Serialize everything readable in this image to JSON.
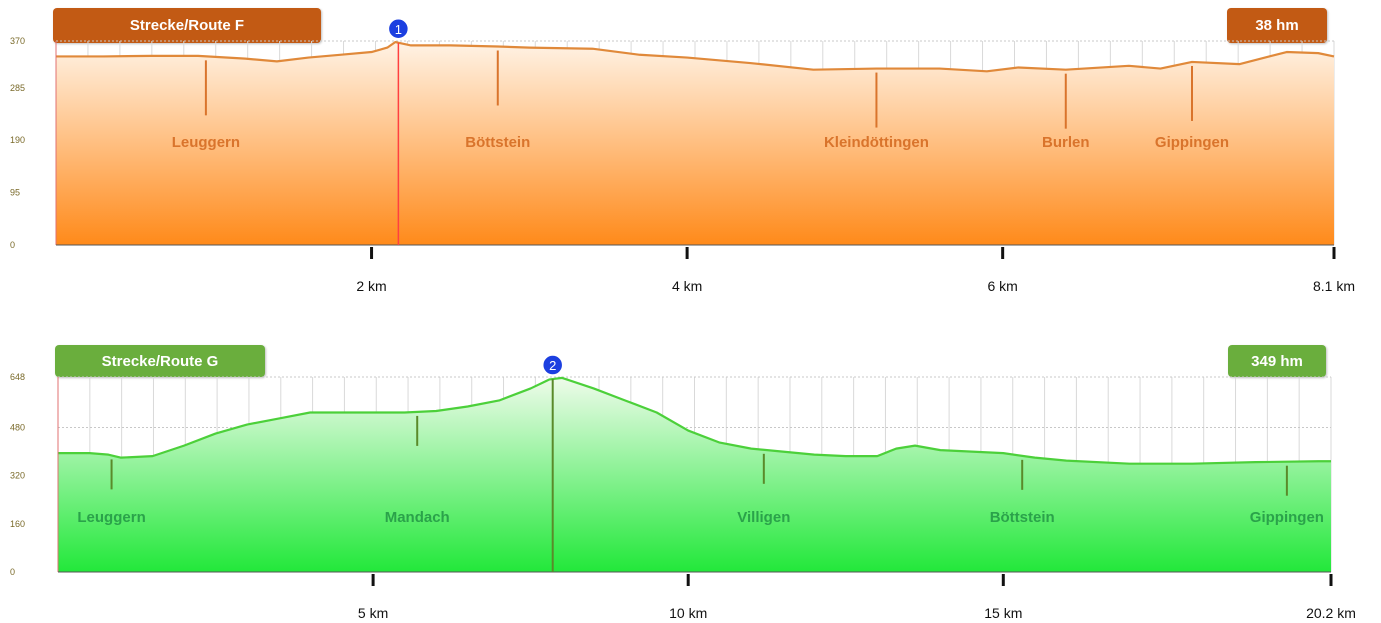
{
  "chart_data": [
    {
      "type": "area",
      "title": "Strecke/Route F",
      "total_label": "38 hm",
      "ylim": [
        0,
        370
      ],
      "y_ticks": [
        "0",
        "95",
        "190",
        "285",
        "370"
      ],
      "xlim": [
        0,
        8.1
      ],
      "x_ticks": [
        {
          "value": 2,
          "label": "2 km"
        },
        {
          "value": 4,
          "label": "4 km"
        },
        {
          "value": 6,
          "label": "6 km"
        },
        {
          "value": 8.1,
          "label": "8.1 km"
        }
      ],
      "grid": true,
      "series": [
        {
          "x": [
            0,
            0.3,
            0.6,
            0.9,
            1.2,
            1.4,
            1.6,
            1.8,
            2.0,
            2.1,
            2.15,
            2.25,
            2.5,
            2.8,
            3.0,
            3.4,
            3.7,
            4.0,
            4.4,
            4.8,
            5.2,
            5.6,
            5.9,
            6.1,
            6.4,
            6.8,
            7.0,
            7.2,
            7.5,
            7.8,
            8.0,
            8.1
          ],
          "y": [
            342,
            342,
            343,
            343,
            338,
            333,
            340,
            345,
            350,
            358,
            368,
            362,
            362,
            360,
            358,
            356,
            345,
            340,
            330,
            318,
            320,
            320,
            315,
            322,
            318,
            325,
            320,
            332,
            328,
            350,
            348,
            342
          ]
        }
      ],
      "marker": {
        "label": "1",
        "x": 2.17
      },
      "annotations": [
        {
          "label": "Leuggern",
          "x": 0.95
        },
        {
          "label": "Böttstein",
          "x": 2.8
        },
        {
          "label": "Kleindöttingen",
          "x": 5.2
        },
        {
          "label": "Burlen",
          "x": 6.4
        },
        {
          "label": "Gippingen",
          "x": 7.2
        }
      ],
      "colors": {
        "line": "#e0893a",
        "fill_top": "#fff3e6",
        "fill_bottom": "#ff8a1a",
        "text": "#d9742c",
        "grid": "#d9d9d9"
      }
    },
    {
      "type": "area",
      "title": "Strecke/Route G",
      "total_label": "349 hm",
      "ylim": [
        0,
        648
      ],
      "y_ticks": [
        "0",
        "160",
        "320",
        "480",
        "648"
      ],
      "xlim": [
        0,
        20.2
      ],
      "x_ticks": [
        {
          "value": 5,
          "label": "5 km"
        },
        {
          "value": 10,
          "label": "10 km"
        },
        {
          "value": 15,
          "label": "15 km"
        },
        {
          "value": 20.2,
          "label": "20.2 km"
        }
      ],
      "grid": true,
      "series": [
        {
          "x": [
            0,
            0.5,
            0.8,
            1.0,
            1.5,
            2.0,
            2.5,
            3.0,
            3.5,
            4.0,
            4.5,
            5.0,
            5.5,
            6.0,
            6.5,
            7.0,
            7.5,
            7.8,
            8.0,
            8.5,
            9.0,
            9.5,
            10.0,
            10.5,
            11.0,
            11.5,
            12.0,
            12.5,
            13.0,
            13.3,
            13.6,
            14.0,
            14.5,
            15.0,
            15.5,
            16.0,
            17.0,
            18.0,
            19.0,
            20.0,
            20.2
          ],
          "y": [
            395,
            395,
            390,
            380,
            385,
            420,
            460,
            490,
            510,
            530,
            530,
            530,
            530,
            535,
            550,
            570,
            610,
            640,
            645,
            610,
            570,
            530,
            470,
            430,
            410,
            400,
            390,
            385,
            385,
            410,
            420,
            405,
            400,
            395,
            380,
            370,
            360,
            360,
            365,
            368,
            368
          ]
        }
      ],
      "marker": {
        "label": "2",
        "x": 7.85
      },
      "annotations": [
        {
          "label": "Leuggern",
          "x": 0.85
        },
        {
          "label": "Mandach",
          "x": 5.7
        },
        {
          "label": "Villigen",
          "x": 11.2
        },
        {
          "label": "Böttstein",
          "x": 15.3
        },
        {
          "label": "Gippingen",
          "x": 19.5
        }
      ],
      "colors": {
        "line": "#4cd03a",
        "fill_top": "#eefbea",
        "fill_bottom": "#22e83a",
        "text": "#2aa24a",
        "grid": "#d9d9d9"
      }
    }
  ]
}
